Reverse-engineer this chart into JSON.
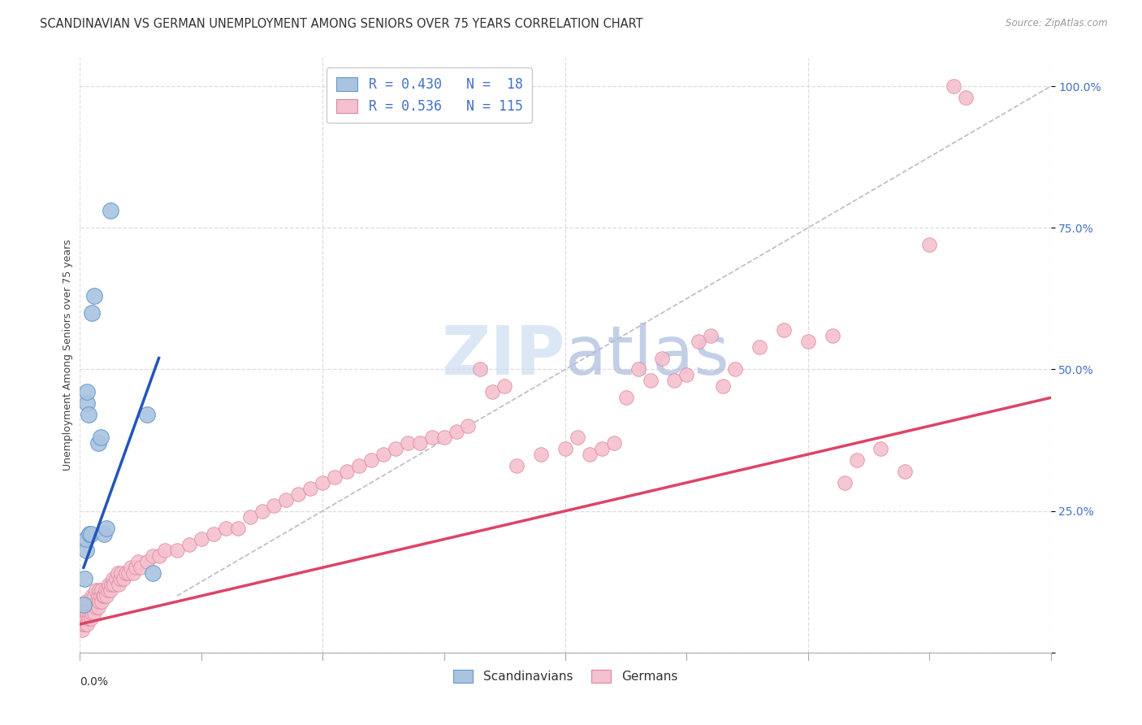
{
  "title": "SCANDINAVIAN VS GERMAN UNEMPLOYMENT AMONG SENIORS OVER 75 YEARS CORRELATION CHART",
  "source": "Source: ZipAtlas.com",
  "ylabel": "Unemployment Among Seniors over 75 years",
  "xmin": 0.0,
  "xmax": 0.8,
  "ymin": 0.0,
  "ymax": 1.05,
  "scandinavian_color": "#aac4e0",
  "scandinavian_edge": "#6699cc",
  "german_color": "#f5c0cf",
  "german_edge": "#dd8899",
  "blue_line_color": "#2255bb",
  "pink_line_color": "#dd4466",
  "ref_line_color": "#bbbbcc",
  "grid_color": "#dddddd",
  "watermark_color": "#ddeeff",
  "scandinavian_x": [
    0.003,
    0.004,
    0.005,
    0.005,
    0.006,
    0.006,
    0.007,
    0.008,
    0.009,
    0.01,
    0.012,
    0.015,
    0.017,
    0.02,
    0.022,
    0.025,
    0.055,
    0.06
  ],
  "scandinavian_y": [
    0.085,
    0.13,
    0.18,
    0.2,
    0.44,
    0.46,
    0.42,
    0.21,
    0.21,
    0.6,
    0.63,
    0.37,
    0.38,
    0.21,
    0.22,
    0.78,
    0.42,
    0.14
  ],
  "german_x": [
    0.001,
    0.002,
    0.002,
    0.003,
    0.003,
    0.004,
    0.004,
    0.005,
    0.005,
    0.006,
    0.006,
    0.007,
    0.007,
    0.008,
    0.008,
    0.009,
    0.009,
    0.01,
    0.01,
    0.011,
    0.011,
    0.012,
    0.012,
    0.013,
    0.013,
    0.014,
    0.015,
    0.015,
    0.016,
    0.016,
    0.017,
    0.018,
    0.018,
    0.019,
    0.02,
    0.021,
    0.022,
    0.023,
    0.024,
    0.025,
    0.026,
    0.027,
    0.028,
    0.03,
    0.031,
    0.032,
    0.033,
    0.034,
    0.036,
    0.038,
    0.04,
    0.042,
    0.044,
    0.046,
    0.048,
    0.05,
    0.055,
    0.06,
    0.065,
    0.07,
    0.08,
    0.09,
    0.1,
    0.11,
    0.12,
    0.13,
    0.14,
    0.15,
    0.16,
    0.17,
    0.18,
    0.19,
    0.2,
    0.21,
    0.22,
    0.23,
    0.24,
    0.25,
    0.26,
    0.27,
    0.28,
    0.29,
    0.3,
    0.31,
    0.32,
    0.33,
    0.34,
    0.35,
    0.36,
    0.38,
    0.4,
    0.41,
    0.42,
    0.43,
    0.44,
    0.45,
    0.46,
    0.47,
    0.48,
    0.49,
    0.5,
    0.51,
    0.52,
    0.53,
    0.54,
    0.56,
    0.58,
    0.6,
    0.62,
    0.63,
    0.64,
    0.66,
    0.68,
    0.7,
    0.72,
    0.73
  ],
  "german_y": [
    0.05,
    0.04,
    0.06,
    0.05,
    0.07,
    0.05,
    0.08,
    0.06,
    0.09,
    0.05,
    0.07,
    0.06,
    0.08,
    0.07,
    0.09,
    0.06,
    0.08,
    0.07,
    0.1,
    0.08,
    0.09,
    0.07,
    0.1,
    0.08,
    0.11,
    0.09,
    0.08,
    0.1,
    0.09,
    0.11,
    0.1,
    0.09,
    0.11,
    0.1,
    0.1,
    0.11,
    0.1,
    0.11,
    0.12,
    0.11,
    0.12,
    0.13,
    0.12,
    0.13,
    0.14,
    0.12,
    0.13,
    0.14,
    0.13,
    0.14,
    0.14,
    0.15,
    0.14,
    0.15,
    0.16,
    0.15,
    0.16,
    0.17,
    0.17,
    0.18,
    0.18,
    0.19,
    0.2,
    0.21,
    0.22,
    0.22,
    0.24,
    0.25,
    0.26,
    0.27,
    0.28,
    0.29,
    0.3,
    0.31,
    0.32,
    0.33,
    0.34,
    0.35,
    0.36,
    0.37,
    0.37,
    0.38,
    0.38,
    0.39,
    0.4,
    0.5,
    0.46,
    0.47,
    0.33,
    0.35,
    0.36,
    0.38,
    0.35,
    0.36,
    0.37,
    0.45,
    0.5,
    0.48,
    0.52,
    0.48,
    0.49,
    0.55,
    0.56,
    0.47,
    0.5,
    0.54,
    0.57,
    0.55,
    0.56,
    0.3,
    0.34,
    0.36,
    0.32,
    0.72,
    1.0,
    0.98
  ],
  "blue_line_x": [
    0.003,
    0.065
  ],
  "blue_line_y": [
    0.15,
    0.52
  ],
  "pink_line_x": [
    0.0,
    0.8
  ],
  "pink_line_y": [
    0.05,
    0.45
  ],
  "ref_line_x": [
    0.08,
    0.8
  ],
  "ref_line_y": [
    0.1,
    1.0
  ],
  "title_fontsize": 10.5,
  "axis_fontsize": 9,
  "tick_fontsize": 10,
  "legend_fontsize": 12
}
